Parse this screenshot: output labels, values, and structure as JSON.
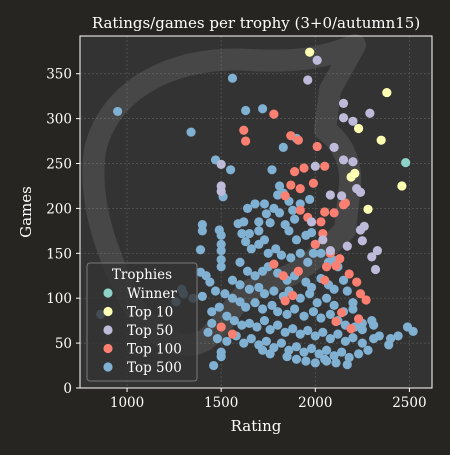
{
  "chart_data": {
    "type": "scatter",
    "title": "Ratings/games per trophy (3+0/autumn15)",
    "xlabel": "Rating",
    "ylabel": "Games",
    "xlim": [
      750,
      2620
    ],
    "ylim": [
      0,
      392
    ],
    "xticks": [
      1000,
      1500,
      2000,
      2500
    ],
    "yticks": [
      0,
      50,
      100,
      150,
      200,
      250,
      300,
      350
    ],
    "grid": true,
    "legend": {
      "title": "Trophies",
      "placement": "lower-left"
    },
    "series": [
      {
        "name": "Winner",
        "color": "#8dd3c7",
        "points": [
          [
            2480,
            251
          ]
        ]
      },
      {
        "name": "Top 10",
        "color": "#ffffb3",
        "points": [
          [
            1970,
            374
          ],
          [
            2380,
            329
          ],
          [
            2230,
            289
          ],
          [
            2350,
            276
          ],
          [
            2210,
            239
          ],
          [
            2190,
            235
          ],
          [
            2280,
            199
          ],
          [
            2460,
            225
          ]
        ]
      },
      {
        "name": "Top 50",
        "color": "#bebada",
        "points": [
          [
            1960,
            343
          ],
          [
            2010,
            365
          ],
          [
            2150,
            317
          ],
          [
            2150,
            301
          ],
          [
            2200,
            297
          ],
          [
            2290,
            306
          ],
          [
            2100,
            268
          ],
          [
            2150,
            254
          ],
          [
            2200,
            252
          ],
          [
            1500,
            249
          ],
          [
            1500,
            225
          ],
          [
            1500,
            219
          ],
          [
            2000,
            247
          ],
          [
            2220,
            222
          ],
          [
            2240,
            218
          ],
          [
            2140,
            214
          ],
          [
            2080,
            215
          ],
          [
            2260,
            180
          ],
          [
            2240,
            176
          ],
          [
            2250,
            164
          ],
          [
            2330,
            153
          ],
          [
            2320,
            132
          ],
          [
            2300,
            146
          ],
          [
            2170,
            158
          ],
          [
            2080,
            153
          ],
          [
            1980,
            185
          ],
          [
            2040,
            165
          ]
        ]
      },
      {
        "name": "Top 100",
        "color": "#fb8072",
        "points": [
          [
            1780,
            305
          ],
          [
            1620,
            287
          ],
          [
            1630,
            275
          ],
          [
            1870,
            281
          ],
          [
            1910,
            276
          ],
          [
            2010,
            269
          ],
          [
            1890,
            241
          ],
          [
            1940,
            245
          ],
          [
            1870,
            226
          ],
          [
            1920,
            222
          ],
          [
            1990,
            228
          ],
          [
            1840,
            214
          ],
          [
            2050,
            247
          ],
          [
            2050,
            196
          ],
          [
            2030,
            185
          ],
          [
            2100,
            195
          ],
          [
            2160,
            206
          ],
          [
            2150,
            204
          ],
          [
            1920,
            198
          ],
          [
            1960,
            190
          ],
          [
            2040,
            172
          ],
          [
            2000,
            160
          ],
          [
            2080,
            150
          ],
          [
            2130,
            144
          ],
          [
            2060,
            135
          ],
          [
            2110,
            136
          ],
          [
            1780,
            138
          ],
          [
            1830,
            125
          ],
          [
            1910,
            130
          ],
          [
            2180,
            127
          ],
          [
            2050,
            120
          ],
          [
            2220,
            118
          ],
          [
            2240,
            105
          ],
          [
            1840,
            97
          ],
          [
            1880,
            103
          ],
          [
            2270,
            98
          ],
          [
            2140,
            84
          ],
          [
            2230,
            77
          ],
          [
            1500,
            68
          ],
          [
            1560,
            60
          ],
          [
            2190,
            66
          ],
          [
            2110,
            74
          ]
        ]
      },
      {
        "name": "Top 500",
        "color": "#80b1d3",
        "points": [
          [
            950,
            308
          ],
          [
            1340,
            285
          ],
          [
            1560,
            345
          ],
          [
            1630,
            309
          ],
          [
            1720,
            311
          ],
          [
            1900,
            278
          ],
          [
            1830,
            268
          ],
          [
            1470,
            254
          ],
          [
            1550,
            243
          ],
          [
            1510,
            213
          ],
          [
            1730,
            205
          ],
          [
            1770,
            243
          ],
          [
            1810,
            225
          ],
          [
            1830,
            217
          ],
          [
            1400,
            182
          ],
          [
            1400,
            175
          ],
          [
            1490,
            176
          ],
          [
            1500,
            170
          ],
          [
            1500,
            160
          ],
          [
            1500,
            153
          ],
          [
            1500,
            143
          ],
          [
            1500,
            135
          ],
          [
            1390,
            154
          ],
          [
            1390,
            129
          ],
          [
            1590,
            183
          ],
          [
            1620,
            185
          ],
          [
            1610,
            172
          ],
          [
            1650,
            172
          ],
          [
            1700,
            175
          ],
          [
            1700,
            185
          ],
          [
            1740,
            194
          ],
          [
            1760,
            184
          ],
          [
            1810,
            195
          ],
          [
            1840,
            182
          ],
          [
            1860,
            175
          ],
          [
            1890,
            188
          ],
          [
            1900,
            165
          ],
          [
            1950,
            170
          ],
          [
            1980,
            173
          ],
          [
            1990,
            150
          ],
          [
            2000,
            160
          ],
          [
            1630,
            163
          ],
          [
            1660,
            155
          ],
          [
            1700,
            160
          ],
          [
            1730,
            165
          ],
          [
            1750,
            150
          ],
          [
            1790,
            155
          ],
          [
            1820,
            148
          ],
          [
            1870,
            145
          ],
          [
            1920,
            150
          ],
          [
            1960,
            140
          ],
          [
            2030,
            150
          ],
          [
            2070,
            140
          ],
          [
            2100,
            142
          ],
          [
            2120,
            135
          ],
          [
            2150,
            120
          ],
          [
            1600,
            140
          ],
          [
            1640,
            130
          ],
          [
            1680,
            125
          ],
          [
            1720,
            130
          ],
          [
            1750,
            135
          ],
          [
            1800,
            128
          ],
          [
            1850,
            120
          ],
          [
            1890,
            125
          ],
          [
            1950,
            118
          ],
          [
            1980,
            112
          ],
          [
            2030,
            122
          ],
          [
            2070,
            115
          ],
          [
            2100,
            110
          ],
          [
            2170,
            108
          ],
          [
            2200,
            95
          ],
          [
            1560,
            120
          ],
          [
            1600,
            115
          ],
          [
            1650,
            110
          ],
          [
            1700,
            112
          ],
          [
            1730,
            105
          ],
          [
            1780,
            108
          ],
          [
            1830,
            102
          ],
          [
            1860,
            108
          ],
          [
            1920,
            100
          ],
          [
            1970,
            105
          ],
          [
            2010,
            95
          ],
          [
            2060,
            100
          ],
          [
            2100,
            92
          ],
          [
            2150,
            85
          ],
          [
            2200,
            88
          ],
          [
            1440,
            118
          ],
          [
            1470,
            108
          ],
          [
            1520,
            105
          ],
          [
            1560,
            100
          ],
          [
            1600,
            96
          ],
          [
            1630,
            90
          ],
          [
            1680,
            95
          ],
          [
            1720,
            88
          ],
          [
            1770,
            92
          ],
          [
            1800,
            85
          ],
          [
            1850,
            82
          ],
          [
            1890,
            88
          ],
          [
            1940,
            80
          ],
          [
            1990,
            85
          ],
          [
            2030,
            78
          ],
          [
            2080,
            82
          ],
          [
            2120,
            75
          ],
          [
            2160,
            70
          ],
          [
            2210,
            68
          ],
          [
            2250,
            72
          ],
          [
            2300,
            75
          ],
          [
            1450,
            85
          ],
          [
            1490,
            90
          ],
          [
            1530,
            80
          ],
          [
            1570,
            75
          ],
          [
            1610,
            70
          ],
          [
            1650,
            72
          ],
          [
            1690,
            68
          ],
          [
            1730,
            75
          ],
          [
            1760,
            65
          ],
          [
            1800,
            70
          ],
          [
            1840,
            62
          ],
          [
            1880,
            66
          ],
          [
            1920,
            60
          ],
          [
            1960,
            64
          ],
          [
            2000,
            58
          ],
          [
            2040,
            62
          ],
          [
            2080,
            55
          ],
          [
            2120,
            60
          ],
          [
            2160,
            52
          ],
          [
            2200,
            56
          ],
          [
            2250,
            50
          ],
          [
            2310,
            55
          ],
          [
            1430,
            62
          ],
          [
            1480,
            55
          ],
          [
            1530,
            52
          ],
          [
            1580,
            58
          ],
          [
            1620,
            50
          ],
          [
            1660,
            55
          ],
          [
            1700,
            48
          ],
          [
            1740,
            52
          ],
          [
            1780,
            45
          ],
          [
            1820,
            50
          ],
          [
            1860,
            42
          ],
          [
            1900,
            46
          ],
          [
            1940,
            40
          ],
          [
            1980,
            44
          ],
          [
            2020,
            38
          ],
          [
            2060,
            42
          ],
          [
            2100,
            36
          ],
          [
            2140,
            40
          ],
          [
            2180,
            34
          ],
          [
            2230,
            38
          ],
          [
            2280,
            42
          ],
          [
            1500,
            40
          ],
          [
            1500,
            35
          ],
          [
            1720,
            42
          ],
          [
            1760,
            38
          ],
          [
            1850,
            35
          ],
          [
            1900,
            32
          ],
          [
            1950,
            30
          ],
          [
            2000,
            28
          ],
          [
            2050,
            32
          ],
          [
            2110,
            28
          ],
          [
            2170,
            26
          ],
          [
            2340,
            58
          ],
          [
            2400,
            55
          ],
          [
            2440,
            58
          ],
          [
            2490,
            68
          ],
          [
            2520,
            63
          ],
          [
            2390,
            48
          ],
          [
            1460,
            25
          ],
          [
            1290,
            110
          ],
          [
            1300,
            105
          ],
          [
            1400,
            102
          ],
          [
            1260,
            96
          ],
          [
            1350,
            100
          ],
          [
            860,
            82
          ],
          [
            1420,
            125
          ],
          [
            1450,
            72
          ],
          [
            2060,
            30
          ],
          [
            2250,
            65
          ],
          [
            2310,
            70
          ],
          [
            1970,
            210
          ],
          [
            1920,
            205
          ],
          [
            1860,
            208
          ],
          [
            1880,
            198
          ],
          [
            1780,
            200
          ],
          [
            1800,
            215
          ],
          [
            1640,
            200
          ],
          [
            1680,
            205
          ]
        ]
      }
    ]
  }
}
